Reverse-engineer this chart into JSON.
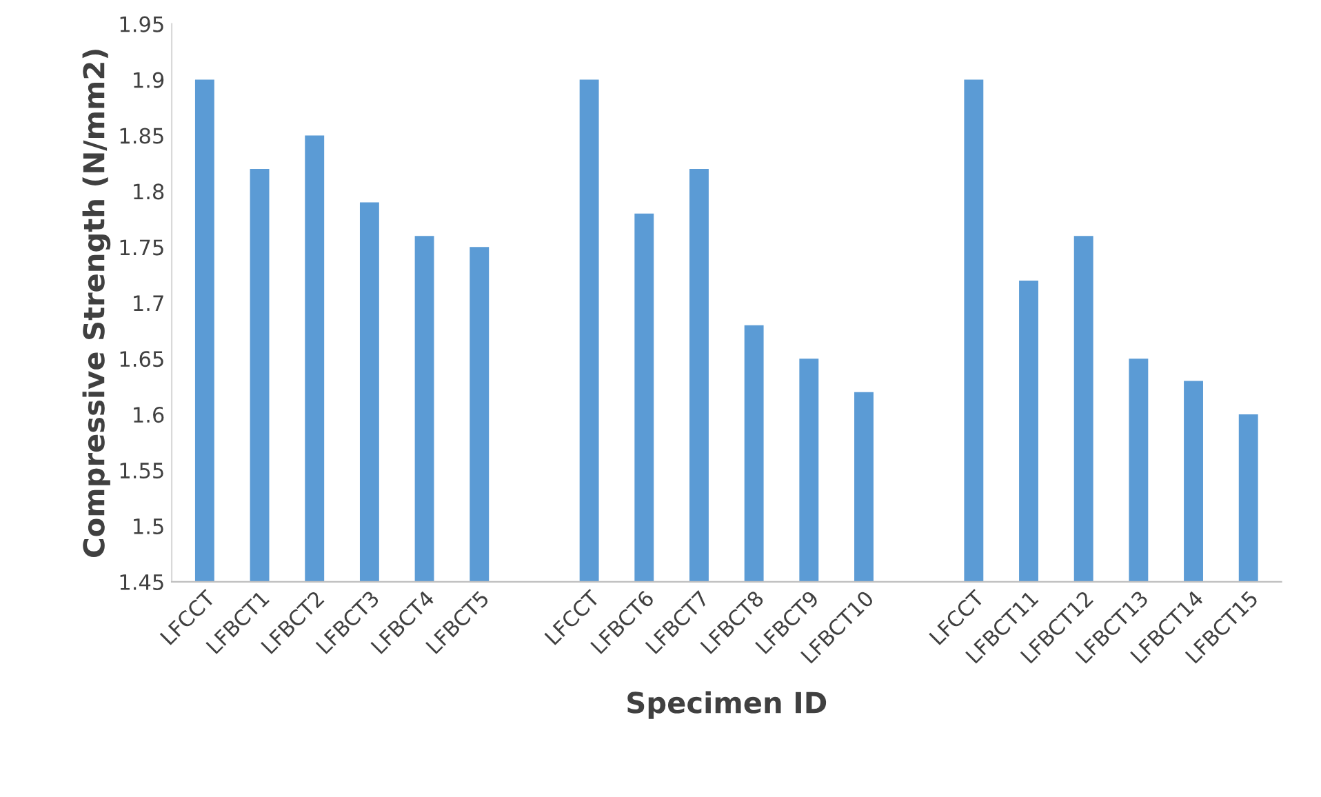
{
  "chart_data": {
    "type": "bar",
    "xlabel": "Specimen ID",
    "ylabel": "Compressive Strength (N/mm2)",
    "categories": [
      "LFCCT",
      "LFBCT1",
      "LFBCT2",
      "LFBCT3",
      "LFBCT4",
      "LFBCT5",
      null,
      "LFCCT",
      "LFBCT6",
      "LFBCT7",
      "LFBCT8",
      "LFBCT9",
      "LFBCT10",
      null,
      "LFCCT",
      "LFBCT11",
      "LFBCT12",
      "LFBCT13",
      "LFBCT14",
      "LFBCT15"
    ],
    "values": [
      1.9,
      1.82,
      1.85,
      1.79,
      1.76,
      1.75,
      null,
      1.9,
      1.78,
      1.82,
      1.68,
      1.65,
      1.62,
      null,
      1.9,
      1.72,
      1.76,
      1.65,
      1.63,
      1.6
    ],
    "color": "#5b9bd5",
    "ylim": [
      1.45,
      1.95
    ],
    "yticks": [
      1.45,
      1.5,
      1.55,
      1.6,
      1.65,
      1.7,
      1.75,
      1.8,
      1.85,
      1.9,
      1.95
    ],
    "grid": false,
    "legend": false
  }
}
